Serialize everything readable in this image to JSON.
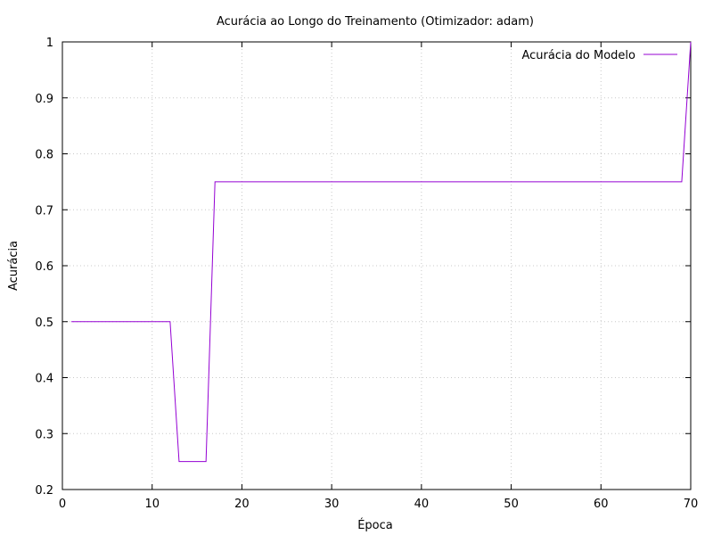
{
  "chart_data": {
    "type": "line",
    "title": "Acurácia ao Longo do Treinamento (Otimizador: adam)",
    "xlabel": "Época",
    "ylabel": "Acurácia",
    "xlim": [
      0,
      70
    ],
    "ylim": [
      0.2,
      1.0
    ],
    "xticks": [
      0,
      10,
      20,
      30,
      40,
      50,
      60,
      70
    ],
    "yticks": [
      0.2,
      0.3,
      0.4,
      0.5,
      0.6,
      0.7,
      0.8,
      0.9,
      1.0
    ],
    "xtick_labels": [
      "0",
      "10",
      "20",
      "30",
      "40",
      "50",
      "60",
      "70"
    ],
    "ytick_labels": [
      "0.2",
      "0.3",
      "0.4",
      "0.5",
      "0.6",
      "0.7",
      "0.8",
      "0.9",
      "1"
    ],
    "grid": true,
    "legend_position": "top-right",
    "series": [
      {
        "name": "Acurácia do Modelo",
        "color": "#9400d3",
        "x": [
          1,
          12,
          13,
          16,
          17,
          69,
          70
        ],
        "y": [
          0.5,
          0.5,
          0.25,
          0.25,
          0.75,
          0.75,
          1.0
        ]
      }
    ]
  }
}
